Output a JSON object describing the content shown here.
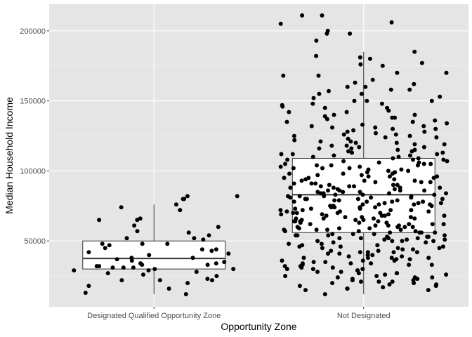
{
  "chart_data": {
    "type": "boxplot-jitter",
    "xlabel": "Opportunity Zone",
    "ylabel": "Median Household Income",
    "categories": [
      "Designated Qualified Opportunity Zone",
      "Not Designated"
    ],
    "ylim": [
      3000,
      219000
    ],
    "yticks": [
      50000,
      100000,
      150000,
      200000
    ],
    "ytick_labels": [
      "50000",
      "100000",
      "150000",
      "200000"
    ],
    "grid": true,
    "legend": "none",
    "background": "#e5e5e5",
    "grid_major_color": "#ffffff",
    "point_color": "#000000",
    "boxes": [
      {
        "category": "Designated Qualified Opportunity Zone",
        "min": 12000,
        "q1": 30000,
        "median": 37500,
        "q3": 50000,
        "max": 76000
      },
      {
        "category": "Not Designated",
        "min": 12000,
        "q1": 56000,
        "median": 83000,
        "q3": 109000,
        "max": 185000
      }
    ],
    "series": [
      {
        "category": "Designated Qualified Opportunity Zone",
        "values": [
          72000,
          74000,
          76000,
          82000,
          80000,
          80000,
          65000,
          60000,
          56000,
          54000,
          52000,
          52000,
          51000,
          48000,
          48000,
          47000,
          45000,
          44000,
          44000,
          43000,
          42000,
          40000,
          38000,
          38000,
          37000,
          36000,
          35000,
          34000,
          34000,
          33000,
          33000,
          32000,
          32000,
          31000,
          31000,
          30000,
          30000,
          29000,
          28000,
          27000,
          26000,
          25000,
          23000,
          22000,
          22000,
          22000,
          20000,
          18000,
          16000,
          13000,
          12000,
          65000,
          82000,
          31000,
          61000,
          57000,
          66000,
          41000,
          48000,
          29000
        ]
      },
      {
        "category": "Not Designated",
        "values": [
          211000,
          211000,
          206000,
          205000,
          200000,
          198000,
          198000,
          193000,
          185000,
          181000,
          180000,
          177000,
          175000,
          170000,
          168000,
          165000,
          163000,
          160000,
          158000,
          157000,
          155000,
          153000,
          152000,
          150000,
          150000,
          148000,
          147000,
          145000,
          143000,
          142000,
          140000,
          138000,
          137000,
          135000,
          134000,
          133000,
          132000,
          131000,
          130000,
          128000,
          127000,
          126000,
          125000,
          124000,
          122000,
          121000,
          120000,
          119000,
          118000,
          117000,
          116000,
          115000,
          114000,
          113000,
          112000,
          111000,
          110000,
          109000,
          108000,
          107000,
          106000,
          105000,
          104000,
          103000,
          102000,
          101000,
          100000,
          99000,
          98000,
          97000,
          96000,
          95000,
          94000,
          93000,
          92000,
          91000,
          90000,
          89000,
          88000,
          87000,
          86000,
          85000,
          84000,
          83000,
          82000,
          81000,
          80000,
          79000,
          78000,
          77000,
          76000,
          75000,
          74000,
          73000,
          72000,
          71000,
          70000,
          69000,
          68000,
          67000,
          66000,
          65000,
          64000,
          63000,
          62000,
          61000,
          60000,
          59000,
          58000,
          57000,
          56000,
          55000,
          54000,
          53000,
          52000,
          51000,
          50000,
          48000,
          47000,
          46000,
          45000,
          44000,
          43000,
          42000,
          41000,
          40000,
          39000,
          38000,
          37000,
          36000,
          35000,
          34000,
          33000,
          32000,
          31000,
          30000,
          29000,
          28000,
          27000,
          26000,
          25000,
          24000,
          23000,
          22000,
          21000,
          20000,
          19000,
          18000,
          17000,
          16000,
          15000,
          12000,
          135000,
          128000,
          118000,
          112000,
          108000,
          105000,
          102000,
          98000,
          95000,
          92000,
          90000,
          88000,
          86000,
          84000,
          82000,
          80000,
          78000,
          76000,
          74000,
          72000,
          70000,
          68000,
          66000,
          64000,
          62000,
          60000,
          58000,
          56000,
          54000,
          52000,
          50000,
          45000,
          42000,
          38000,
          35000,
          32000,
          28000,
          24000,
          20000,
          145000,
          140000,
          132000,
          125000,
          120000,
          115000,
          110000,
          106000,
          104000,
          100000,
          97000,
          94000,
          91000,
          89000,
          87000,
          85000,
          83000,
          81000,
          79000,
          77000,
          75000,
          73000,
          71000,
          69000,
          67000,
          65000,
          63000,
          61000,
          59000,
          57000,
          55000,
          53000,
          51000,
          49000,
          46000,
          43000,
          40000,
          37000,
          34000,
          30000,
          26000,
          22000,
          162000,
          155000,
          148000,
          138000,
          130000,
          123000,
          117000,
          113000,
          109000,
          103000,
          99000,
          96000,
          93000,
          90000,
          88000,
          86000,
          84000,
          82000,
          80000,
          78000,
          76000,
          74000,
          72000,
          70000,
          68000,
          66000,
          64000,
          62000,
          60000,
          58000,
          56000,
          54000,
          52000,
          50000,
          47000,
          44000,
          41000,
          38000,
          36000,
          33000,
          29000,
          25000,
          21000,
          18000,
          15000,
          170000,
          160000,
          150000,
          142000,
          136000,
          129000,
          124000,
          119000,
          114000,
          111000,
          107000,
          104000,
          101000,
          98000,
          95000,
          92000,
          89000,
          86000,
          84000,
          82000,
          80000,
          78000,
          76000,
          74000,
          72000,
          70000,
          68000,
          66000,
          64000,
          62000,
          60000,
          58000,
          56000,
          54000,
          52000,
          50000,
          48000,
          45000,
          42000,
          39000,
          36000,
          33000,
          30000,
          27000,
          23000,
          19000,
          182000,
          176000,
          168000,
          158000,
          146000,
          139000,
          131000,
          126000,
          121000,
          116000,
          112000,
          108000,
          105000,
          102000,
          99000,
          96000,
          93000,
          91000,
          88000,
          85000,
          83000,
          81000,
          79000,
          77000,
          75000,
          73000,
          71000,
          69000,
          67000,
          65000,
          63000,
          61000,
          59000,
          57000,
          55000,
          53000,
          51000,
          49000,
          46000,
          42000,
          38000,
          34000,
          31000,
          27000,
          24000,
          21000,
          16000
        ]
      }
    ]
  }
}
